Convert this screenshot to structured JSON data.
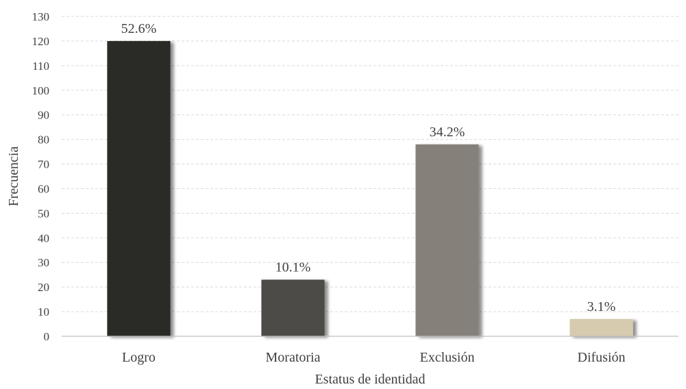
{
  "chart_data": {
    "type": "bar",
    "categories": [
      "Logro",
      "Moratoria",
      "Exclusión",
      "Difusión"
    ],
    "values": [
      120,
      23,
      78,
      7
    ],
    "data_labels": [
      "52.6%",
      "10.1%",
      "34.2%",
      "3.1%"
    ],
    "colors": [
      "#2b2a27",
      "#4d4c47",
      "#858079",
      "#d6cbaf"
    ],
    "xlabel": "Estatus de identidad",
    "ylabel": "Frecuencia",
    "ylim": [
      0,
      130
    ],
    "yticks": [
      0,
      10,
      20,
      30,
      40,
      50,
      60,
      70,
      80,
      90,
      100,
      110,
      120,
      130
    ],
    "grid": true,
    "legend": "none"
  }
}
